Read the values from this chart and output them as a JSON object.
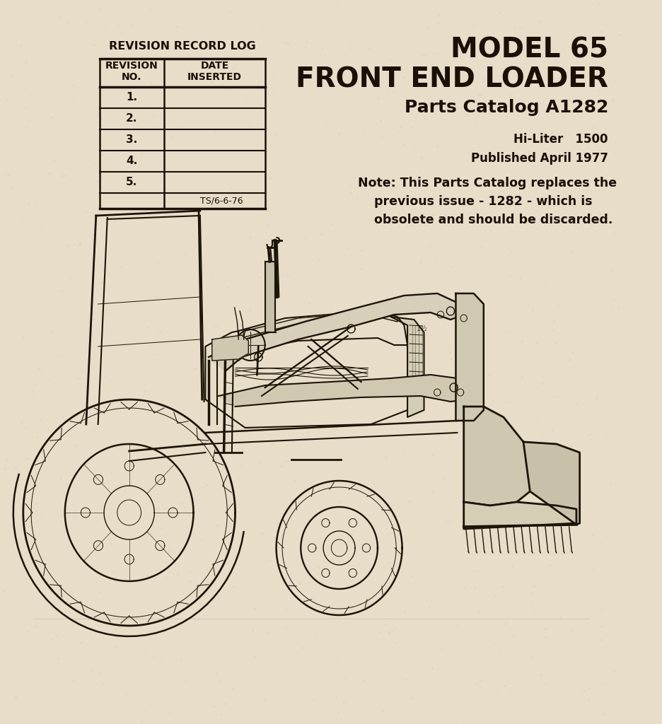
{
  "bg_color": "#e8ddc8",
  "title_line1": "MODEL 65",
  "title_line2": "FRONT END LOADER",
  "title_line3": "Parts Catalog A1282",
  "hi_liter": "Hi-Liter   1500",
  "published": "Published April 1977",
  "note_line1": "Note: This Parts Catalog replaces the",
  "note_line2": "previous issue - 1282 - which is",
  "note_line3": "obsolete and should be discarded.",
  "rev_title": "REVISION RECORD LOG",
  "rev_col1": "REVISION\nNO.",
  "rev_col2": "DATE\nINSERTED",
  "rev_rows": [
    "1.",
    "2.",
    "3.",
    "4.",
    "5."
  ],
  "rev_footer": "TS/6-6-76",
  "text_color": "#1a1008",
  "line_color": "#1a1008"
}
